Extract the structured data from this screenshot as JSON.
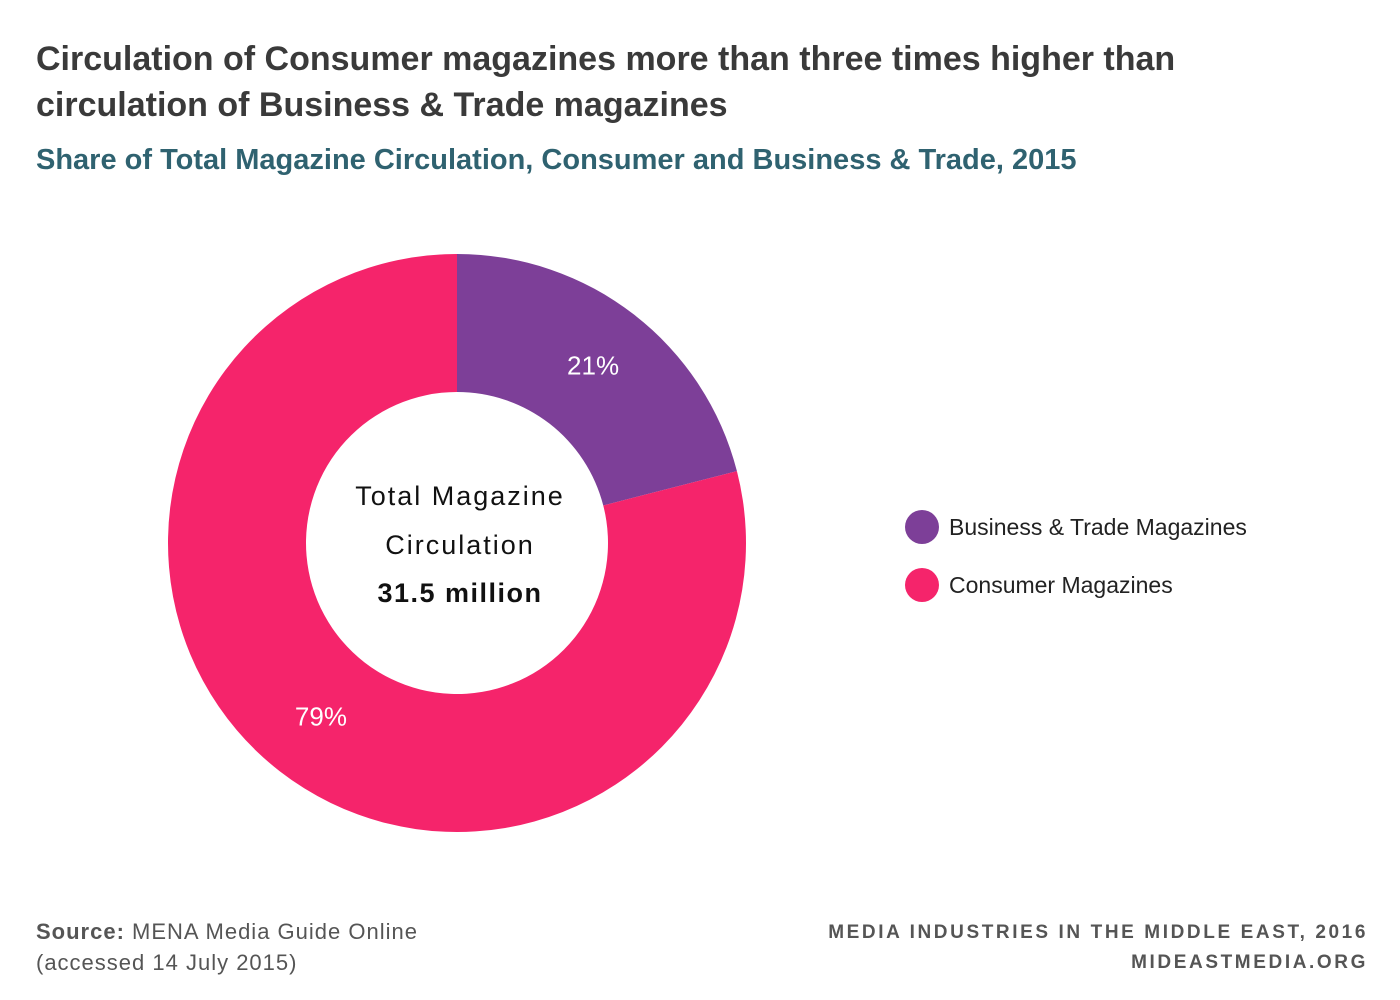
{
  "title": "Circulation of Consumer magazines more than three times higher than circulation of Business & Trade magazines",
  "subtitle": "Share of Total Magazine Circulation, Consumer and Business & Trade, 2015",
  "center": {
    "line1": "Total Magazine",
    "line2": "Circulation",
    "total": "31.5 million"
  },
  "chart_data": {
    "type": "pie",
    "title": "Circulation of Consumer magazines more than three times higher than circulation of Business & Trade magazines",
    "subtitle": "Share of Total Magazine Circulation, Consumer and Business & Trade, 2015",
    "donut": true,
    "unit": "%",
    "start": "12 o'clock, clockwise",
    "legend_position": "right",
    "slices": [
      {
        "label": "Business & Trade Magazines",
        "value": 21,
        "display": "21%",
        "color": "#7d3f98"
      },
      {
        "label": "Consumer Magazines",
        "value": 79,
        "display": "79%",
        "color": "#f5246b"
      }
    ]
  },
  "source": {
    "key": "Source:",
    "text": "MENA Media Guide Online",
    "note": "(accessed 14 July 2015)"
  },
  "credit": {
    "line1": "MEDIA INDUSTRIES IN THE MIDDLE EAST, 2016",
    "line2": "MIDEASTMEDIA.ORG"
  }
}
